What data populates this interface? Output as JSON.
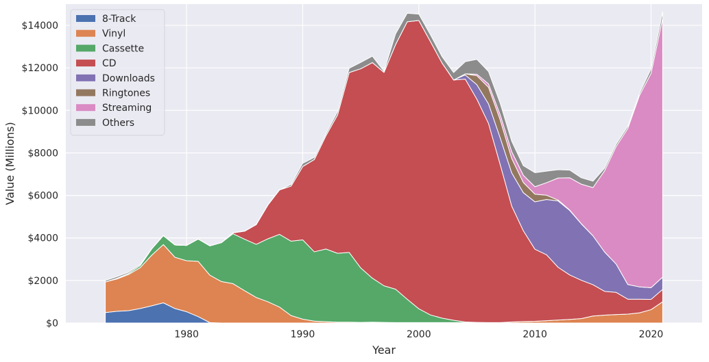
{
  "chart_data": {
    "type": "area",
    "stacked": true,
    "title": "",
    "xlabel": "Year",
    "ylabel": "Value (Millions)",
    "xlim": [
      1973,
      2021
    ],
    "ylim": [
      0,
      15000
    ],
    "xticks": [
      1980,
      1990,
      2000,
      2010,
      2020
    ],
    "yticks": [
      0,
      2000,
      4000,
      6000,
      8000,
      10000,
      12000,
      14000
    ],
    "ytick_labels": [
      "$0",
      "$2000",
      "$4000",
      "$6000",
      "$8000",
      "$10000",
      "$12000",
      "$14000"
    ],
    "grid": true,
    "legend_position": "top-left",
    "x": [
      1973,
      1974,
      1975,
      1976,
      1977,
      1978,
      1979,
      1980,
      1981,
      1982,
      1983,
      1984,
      1985,
      1986,
      1987,
      1988,
      1989,
      1990,
      1991,
      1992,
      1993,
      1994,
      1995,
      1996,
      1997,
      1998,
      1999,
      2000,
      2001,
      2002,
      2003,
      2004,
      2005,
      2006,
      2007,
      2008,
      2009,
      2010,
      2011,
      2012,
      2013,
      2014,
      2015,
      2016,
      2017,
      2018,
      2019,
      2020,
      2021
    ],
    "series": [
      {
        "name": "8-Track",
        "color": "#4c72b0",
        "values": [
          490,
          550,
          580,
          680,
          810,
          950,
          680,
          530,
          300,
          20,
          0,
          0,
          0,
          0,
          0,
          0,
          0,
          0,
          0,
          0,
          0,
          0,
          0,
          0,
          0,
          0,
          0,
          0,
          0,
          0,
          0,
          0,
          0,
          0,
          0,
          0,
          0,
          0,
          0,
          0,
          0,
          0,
          0,
          0,
          0,
          0,
          0,
          0,
          0
        ]
      },
      {
        "name": "Vinyl",
        "color": "#dd8452",
        "values": [
          1440,
          1520,
          1700,
          1920,
          2380,
          2740,
          2410,
          2400,
          2600,
          2230,
          1950,
          1850,
          1520,
          1200,
          1000,
          750,
          350,
          180,
          90,
          60,
          40,
          40,
          30,
          40,
          30,
          20,
          20,
          20,
          20,
          20,
          20,
          20,
          20,
          20,
          20,
          50,
          70,
          80,
          110,
          140,
          170,
          210,
          330,
          370,
          400,
          420,
          480,
          630,
          1000
        ]
      },
      {
        "name": "Cassette",
        "color": "#55a868",
        "values": [
          0,
          30,
          50,
          100,
          300,
          420,
          580,
          720,
          1050,
          1380,
          1830,
          2350,
          2420,
          2500,
          2960,
          3420,
          3500,
          3730,
          3260,
          3420,
          3240,
          3280,
          2560,
          2070,
          1720,
          1570,
          1100,
          650,
          360,
          210,
          110,
          30,
          10,
          0,
          0,
          0,
          0,
          0,
          0,
          0,
          0,
          0,
          0,
          0,
          0,
          0,
          0,
          0,
          0
        ]
      },
      {
        "name": "CD",
        "color": "#c44e52",
        "values": [
          0,
          0,
          0,
          0,
          0,
          0,
          0,
          0,
          0,
          0,
          0,
          40,
          380,
          930,
          1590,
          2090,
          2590,
          3450,
          4340,
          5330,
          6510,
          8460,
          9370,
          10140,
          10040,
          11510,
          13050,
          13560,
          12860,
          12000,
          11300,
          11420,
          10500,
          9370,
          7450,
          5450,
          4270,
          3390,
          3100,
          2480,
          2090,
          1800,
          1470,
          1120,
          1040,
          700,
          640,
          480,
          580
        ]
      },
      {
        "name": "Downloads",
        "color": "#8172b3",
        "values": [
          0,
          0,
          0,
          0,
          0,
          0,
          0,
          0,
          0,
          0,
          0,
          0,
          0,
          0,
          0,
          0,
          0,
          0,
          0,
          0,
          0,
          0,
          0,
          0,
          0,
          0,
          0,
          0,
          0,
          0,
          0,
          200,
          680,
          920,
          1250,
          1560,
          1790,
          2230,
          2600,
          3120,
          3030,
          2650,
          2300,
          1850,
          1330,
          690,
          580,
          550,
          580
        ]
      },
      {
        "name": "Ringtones",
        "color": "#937860",
        "values": [
          0,
          0,
          0,
          0,
          0,
          0,
          0,
          0,
          0,
          0,
          0,
          0,
          0,
          0,
          0,
          0,
          0,
          0,
          0,
          0,
          0,
          0,
          0,
          0,
          0,
          0,
          0,
          0,
          0,
          0,
          0,
          50,
          420,
          780,
          850,
          680,
          480,
          360,
          200,
          40,
          20,
          10,
          0,
          0,
          0,
          0,
          0,
          0,
          0
        ]
      },
      {
        "name": "Streaming",
        "color": "#da8bc3",
        "values": [
          0,
          0,
          0,
          0,
          0,
          0,
          0,
          0,
          0,
          0,
          0,
          0,
          0,
          0,
          0,
          0,
          0,
          0,
          0,
          0,
          0,
          0,
          0,
          0,
          0,
          0,
          0,
          0,
          0,
          0,
          0,
          0,
          70,
          160,
          240,
          320,
          340,
          350,
          590,
          1040,
          1520,
          1860,
          2270,
          3820,
          5540,
          7340,
          9000,
          10080,
          12180
        ]
      },
      {
        "name": "Others",
        "color": "#8c8c8c",
        "values": [
          70,
          80,
          60,
          50,
          0,
          0,
          0,
          0,
          0,
          0,
          0,
          0,
          0,
          0,
          0,
          0,
          80,
          150,
          100,
          90,
          150,
          200,
          300,
          300,
          50,
          500,
          400,
          300,
          320,
          300,
          350,
          570,
          700,
          580,
          540,
          490,
          450,
          660,
          540,
          390,
          360,
          300,
          300,
          120,
          110,
          100,
          100,
          200,
          300
        ]
      }
    ]
  }
}
